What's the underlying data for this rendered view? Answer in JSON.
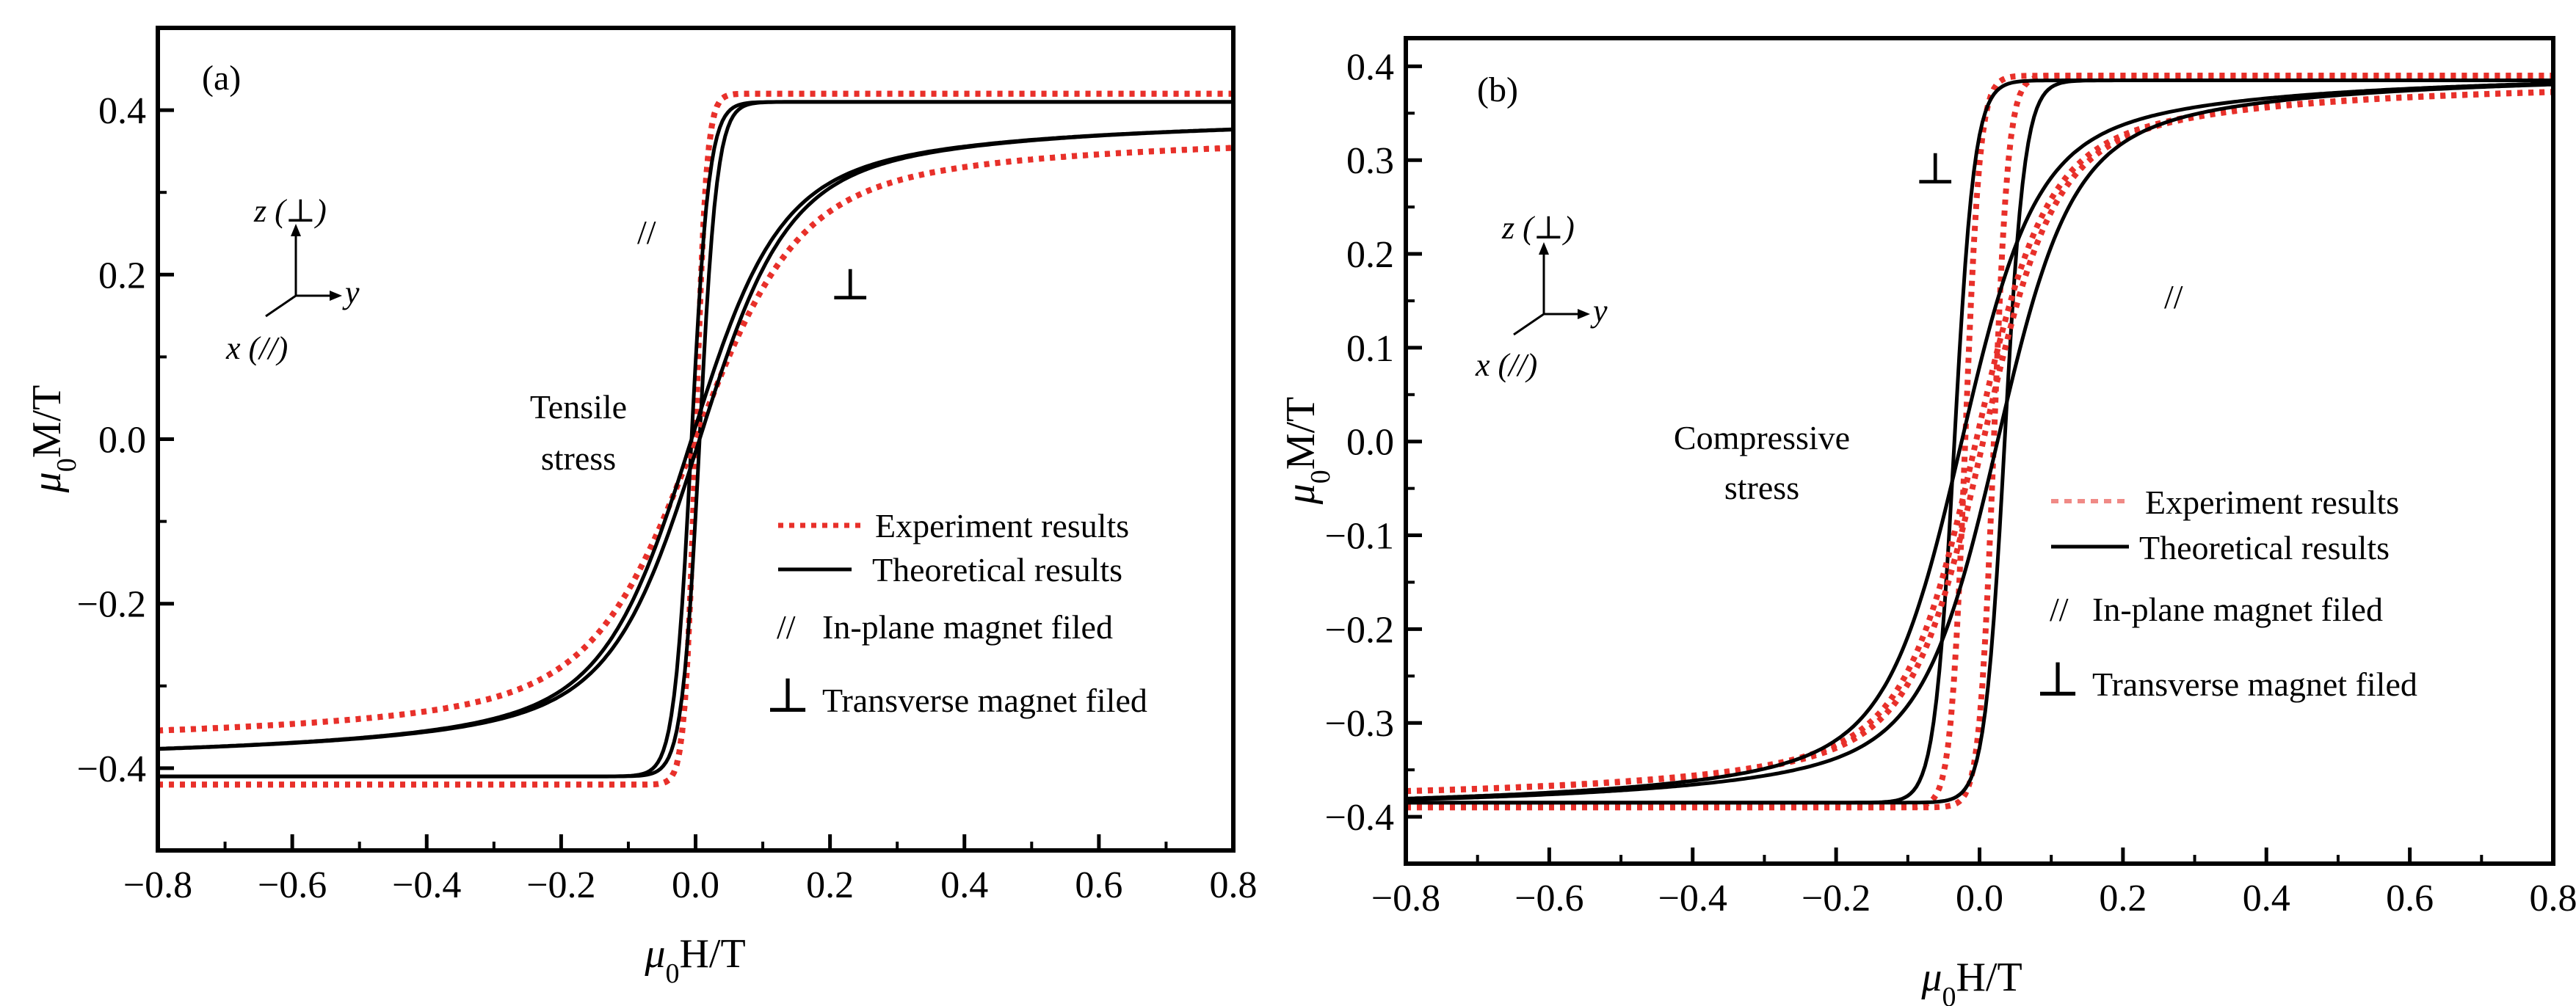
{
  "chart_data": [
    {
      "type": "line",
      "panel_label": "(a)",
      "xlabel": "μ0H/T",
      "ylabel": "μ0M/T",
      "xlim": [
        -0.8,
        0.8
      ],
      "ylim": [
        -0.5,
        0.5
      ],
      "xticks": [
        -0.8,
        -0.6,
        -0.4,
        -0.2,
        0.0,
        0.2,
        0.4,
        0.6,
        0.8
      ],
      "xtick_labels": [
        "−0.8",
        "−0.6",
        "−0.4",
        "−0.2",
        "0.0",
        "0.2",
        "0.4",
        "0.6",
        "0.8"
      ],
      "yticks": [
        -0.4,
        -0.2,
        0.0,
        0.2,
        0.4
      ],
      "ytick_labels": [
        "−0.4",
        "−0.2",
        "0.0",
        "0.2",
        "0.4"
      ],
      "stress_label": [
        "Tensile",
        "stress"
      ],
      "curve_labels": {
        "parallel": "//",
        "perpendicular": "⊥"
      },
      "axes_glyph": {
        "z": "z (⊥)",
        "y": "y",
        "x": "x (//)"
      },
      "legend": {
        "experiment": "Experiment results",
        "theory": "Theoretical  results",
        "parallel_sym": "//",
        "parallel": "In-plane magnet filed",
        "perp_sym": "⊥",
        "perp": "Transverse magnet filed"
      },
      "series": [
        {
          "name": "Experiment // (in-plane)",
          "style": "dotted",
          "color": "#e8302a",
          "model": "loop",
          "Ms": 0.42,
          "a": 0.016,
          "Hc": 0.0
        },
        {
          "name": "Theory // (in-plane)",
          "style": "solid",
          "color": "#000000",
          "model": "loop",
          "Ms": 0.41,
          "a": 0.026,
          "Hc": 0.006
        },
        {
          "name": "Experiment ⊥ (transverse)",
          "style": "dotted",
          "color": "#e8302a",
          "model": "langevin",
          "Ms": 0.38,
          "a": 0.14,
          "Hc": 0.0
        },
        {
          "name": "Theory ⊥ (transverse)",
          "style": "solid",
          "color": "#000000",
          "model": "langevin",
          "Ms": 0.4,
          "a": 0.12,
          "Hc": 0.006
        }
      ]
    },
    {
      "type": "line",
      "panel_label": "(b)",
      "xlabel": "μ0H/T",
      "ylabel": "μ0M/T",
      "xlim": [
        -0.8,
        0.8
      ],
      "ylim": [
        -0.45,
        0.43
      ],
      "xticks": [
        -0.8,
        -0.6,
        -0.4,
        -0.2,
        0.0,
        0.2,
        0.4,
        0.6,
        0.8
      ],
      "xtick_labels": [
        "−0.8",
        "−0.6",
        "−0.4",
        "−0.2",
        "0.0",
        "0.2",
        "0.4",
        "0.6",
        "0.8"
      ],
      "yticks": [
        -0.4,
        -0.3,
        -0.2,
        -0.1,
        0.0,
        0.1,
        0.2,
        0.3,
        0.4
      ],
      "ytick_labels": [
        "−0.4",
        "−0.3",
        "−0.2",
        "−0.1",
        "0.0",
        "0.1",
        "0.2",
        "0.3",
        "0.4"
      ],
      "stress_label": [
        "Compressive",
        "stress"
      ],
      "curve_labels": {
        "parallel": "//",
        "perpendicular": "⊥"
      },
      "axes_glyph": {
        "z": "z (⊥)",
        "y": "y",
        "x": "x (//)"
      },
      "legend": {
        "experiment": "Experiment results",
        "theory": "Theoretical  results",
        "parallel_sym": "//",
        "parallel": "In-plane magnet filed",
        "perp_sym": "⊥",
        "perp": "Transverse magnet filed"
      },
      "series": [
        {
          "name": "Experiment ⊥ (transverse)",
          "style": "dotted",
          "color": "#e8302a",
          "model": "loop",
          "Ms": 0.39,
          "a": 0.02,
          "Hc": 0.02
        },
        {
          "name": "Theory ⊥ (transverse)",
          "style": "solid",
          "color": "#000000",
          "model": "loop",
          "Ms": 0.385,
          "a": 0.028,
          "Hc": 0.035
        },
        {
          "name": "Experiment // (in-plane)",
          "style": "dotted",
          "color": "#e8302a",
          "model": "langevin",
          "Ms": 0.39,
          "a": 0.09,
          "Hc": 0.005
        },
        {
          "name": "Theory // (in-plane)",
          "style": "solid",
          "color": "#000000",
          "model": "langevin",
          "Ms": 0.4,
          "a": 0.095,
          "Hc": 0.025
        }
      ]
    }
  ]
}
